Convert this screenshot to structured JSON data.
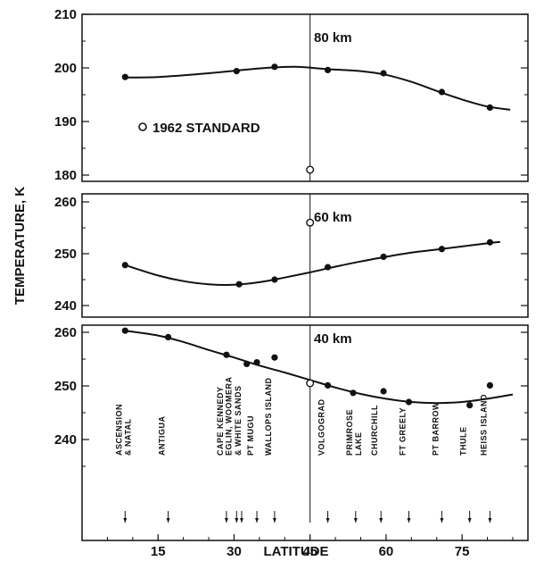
{
  "chart_data": {
    "type": "scatter",
    "xlabel": "LATITUDE",
    "ylabel": "TEMPERATURE, K",
    "xlim": [
      0,
      88
    ],
    "xticks": [
      "15",
      "30",
      "45",
      "60",
      "75"
    ],
    "reference_latitude": 45,
    "legend": "1962 STANDARD",
    "panels": [
      {
        "label": "80 km",
        "ylim": [
          176,
          210
        ],
        "yticks": [
          "180",
          "190",
          "200",
          "210"
        ],
        "points": [
          [
            8.5,
            198.3
          ],
          [
            30.5,
            199.4
          ],
          [
            38,
            200.2
          ],
          [
            48.5,
            199.6
          ],
          [
            59.5,
            199.0
          ],
          [
            71,
            195.5
          ],
          [
            80.5,
            192.6
          ]
        ],
        "fit": [
          [
            8.5,
            198.2
          ],
          [
            15,
            198.3
          ],
          [
            25,
            199.0
          ],
          [
            35,
            199.9
          ],
          [
            42,
            200.2
          ],
          [
            48,
            199.8
          ],
          [
            55,
            199.4
          ],
          [
            60,
            198.7
          ],
          [
            65,
            197.4
          ],
          [
            70,
            195.7
          ],
          [
            75,
            194.1
          ],
          [
            80,
            192.8
          ],
          [
            84.5,
            192.2
          ]
        ],
        "standard": [
          45,
          181
        ]
      },
      {
        "label": "60 km",
        "ylim": [
          238,
          262
        ],
        "yticks": [
          "240",
          "250",
          "260"
        ],
        "points": [
          [
            8.5,
            247.8
          ],
          [
            31,
            244.1
          ],
          [
            38,
            245.0
          ],
          [
            48.5,
            247.4
          ],
          [
            59.5,
            249.4
          ],
          [
            71,
            250.9
          ],
          [
            80.5,
            252.2
          ]
        ],
        "fit": [
          [
            8.5,
            247.8
          ],
          [
            15,
            245.8
          ],
          [
            20,
            244.7
          ],
          [
            25,
            244.1
          ],
          [
            30,
            244.0
          ],
          [
            35,
            244.5
          ],
          [
            40,
            245.4
          ],
          [
            45,
            246.4
          ],
          [
            50,
            247.5
          ],
          [
            55,
            248.5
          ],
          [
            60,
            249.4
          ],
          [
            65,
            250.2
          ],
          [
            70,
            250.8
          ],
          [
            75,
            251.4
          ],
          [
            80,
            252.0
          ],
          [
            82.5,
            252.3
          ]
        ],
        "standard": [
          45,
          256
        ]
      },
      {
        "label": "40 km",
        "ylim": [
          232,
          262
        ],
        "yticks": [
          "240",
          "250",
          "260"
        ],
        "points": [
          [
            8.5,
            260.3
          ],
          [
            17,
            259.1
          ],
          [
            28.5,
            255.8
          ],
          [
            32.5,
            254.1
          ],
          [
            34.5,
            254.4
          ],
          [
            38,
            255.3
          ],
          [
            48.5,
            250.1
          ],
          [
            53.5,
            248.7
          ],
          [
            59.5,
            249.0
          ],
          [
            64.5,
            247.0
          ],
          [
            76.5,
            246.4
          ],
          [
            80.5,
            250.1
          ]
        ],
        "fit": [
          [
            8.5,
            260.3
          ],
          [
            15,
            259.4
          ],
          [
            20,
            258.2
          ],
          [
            25,
            256.7
          ],
          [
            30,
            255.3
          ],
          [
            35,
            253.8
          ],
          [
            40,
            252.5
          ],
          [
            45,
            251.1
          ],
          [
            50,
            249.7
          ],
          [
            55,
            248.5
          ],
          [
            60,
            247.6
          ],
          [
            65,
            247.0
          ],
          [
            70,
            246.8
          ],
          [
            75,
            247.0
          ],
          [
            80,
            247.6
          ],
          [
            85,
            248.4
          ]
        ],
        "standard": [
          45,
          250.5
        ]
      }
    ],
    "stations": [
      {
        "name": "ASCENSION & NATAL",
        "lat": 8.5
      },
      {
        "name": "ANTIGUA",
        "lat": 17
      },
      {
        "name": "CAPE KENNEDY",
        "lat": 28.5
      },
      {
        "name": "EGLIN, WOOMERA",
        "lat": 30.5
      },
      {
        "name": "& WHITE SANDS",
        "lat": 31.5
      },
      {
        "name": "PT MUGU",
        "lat": 34.5
      },
      {
        "name": "WALLOPS ISLAND",
        "lat": 38
      },
      {
        "name": "VOLGOGRAD",
        "lat": 48.5
      },
      {
        "name": "PRIMROSE LAKE",
        "lat": 54
      },
      {
        "name": "CHURCHILL",
        "lat": 59
      },
      {
        "name": "FT GREELY",
        "lat": 64.5
      },
      {
        "name": "PT BARROW",
        "lat": 71
      },
      {
        "name": "THULE",
        "lat": 76.5
      },
      {
        "name": "HEISS ISLAND",
        "lat": 80.5
      }
    ]
  }
}
